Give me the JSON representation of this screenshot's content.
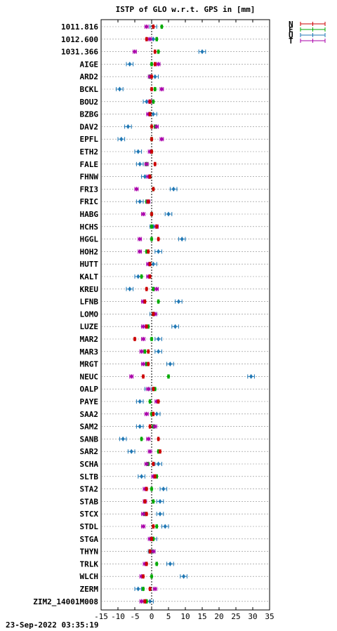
{
  "chart_data": {
    "type": "scatter",
    "title": "ISTP of GLO w.r.t. GPS in [mm]",
    "xlim": [
      -15,
      35
    ],
    "xticks": [
      -15,
      -10,
      -5,
      0,
      5,
      10,
      15,
      20,
      25,
      30,
      35
    ],
    "reference_line_x": 0,
    "grid": "horizontal dotted",
    "legend_position": "top-right",
    "series": [
      {
        "name": "N",
        "color": "#cc0000"
      },
      {
        "name": "E",
        "color": "#00aa00"
      },
      {
        "name": "U",
        "color": "#1f77b4"
      },
      {
        "name": "T",
        "color": "#aa00aa"
      }
    ],
    "stations": [
      {
        "label": "1011.816",
        "N": 0.5,
        "E": 3.0,
        "U": 0.5,
        "T": -1.5
      },
      {
        "label": "1012.600",
        "N": -1.5,
        "E": 1.5,
        "U": 0.5,
        "T": -0.5
      },
      {
        "label": "1031.366",
        "N": 1.0,
        "E": 2.0,
        "U": 15.0,
        "T": -5.0
      },
      {
        "label": "AIGE",
        "N": 1.0,
        "E": 0.0,
        "U": -6.5,
        "T": 2.0
      },
      {
        "label": "ARD2",
        "N": 0.0,
        "E": -0.5,
        "U": 1.0,
        "T": -0.5
      },
      {
        "label": "BCKL",
        "N": 0.0,
        "E": 1.0,
        "U": -9.5,
        "T": 3.0
      },
      {
        "label": "BOU2",
        "N": -0.5,
        "E": 0.5,
        "U": -1.5,
        "T": -0.5
      },
      {
        "label": "BZBG",
        "N": -0.5,
        "E": -0.5,
        "U": 0.5,
        "T": -1.0
      },
      {
        "label": "DAV2",
        "N": 0.0,
        "E": 1.0,
        "U": -7.0,
        "T": 1.5
      },
      {
        "label": "EPFL",
        "N": 0.0,
        "E": 0.0,
        "U": -9.0,
        "T": 3.0
      },
      {
        "label": "ETH2",
        "N": 0.0,
        "E": 0.0,
        "U": -4.0,
        "T": -0.5
      },
      {
        "label": "FALE",
        "N": 1.0,
        "E": -1.5,
        "U": -3.5,
        "T": -1.5
      },
      {
        "label": "FHNW",
        "N": -0.5,
        "E": -0.5,
        "U": -2.0,
        "T": -1.0
      },
      {
        "label": "FRI3",
        "N": 0.5,
        "E": 0.5,
        "U": 6.5,
        "T": -4.5
      },
      {
        "label": "FRIC",
        "N": -1.0,
        "E": -1.5,
        "U": -3.5,
        "T": -1.0
      },
      {
        "label": "HABG",
        "N": 0.0,
        "E": 0.0,
        "U": 5.0,
        "T": -2.5
      },
      {
        "label": "HCHS",
        "N": 1.5,
        "E": 0.0,
        "U": 0.5,
        "T": 1.5
      },
      {
        "label": "HGGL",
        "N": 2.0,
        "E": 0.0,
        "U": 9.0,
        "T": -3.5
      },
      {
        "label": "HOH2",
        "N": -1.0,
        "E": -1.5,
        "U": 2.0,
        "T": -3.5
      },
      {
        "label": "HUTT",
        "N": -0.5,
        "E": -0.5,
        "U": 0.5,
        "T": -1.0
      },
      {
        "label": "KALT",
        "N": -0.5,
        "E": -3.0,
        "U": -4.0,
        "T": -1.0
      },
      {
        "label": "KREU",
        "N": -1.5,
        "E": 0.5,
        "U": -6.5,
        "T": 1.5
      },
      {
        "label": "LFNB",
        "N": -2.0,
        "E": 2.0,
        "U": 8.0,
        "T": -2.5
      },
      {
        "label": "LOMO",
        "N": 0.5,
        "E": 0.5,
        "U": 0.5,
        "T": 1.0
      },
      {
        "label": "LUZE",
        "N": -1.5,
        "E": -1.0,
        "U": 7.0,
        "T": -2.5
      },
      {
        "label": "MAR2",
        "N": -5.0,
        "E": 0.0,
        "U": 2.0,
        "T": -2.5
      },
      {
        "label": "MAR3",
        "N": -1.0,
        "E": -2.0,
        "U": 2.0,
        "T": -3.0
      },
      {
        "label": "MRGT",
        "N": -1.0,
        "E": -1.5,
        "U": 5.5,
        "T": -2.5
      },
      {
        "label": "NEUC",
        "N": -2.5,
        "E": 5.0,
        "U": 29.5,
        "T": -6.0
      },
      {
        "label": "OALP",
        "N": 0.5,
        "E": 1.0,
        "U": -1.0,
        "T": -1.0
      },
      {
        "label": "PAYE",
        "N": 2.0,
        "E": -0.5,
        "U": -3.5,
        "T": 1.5
      },
      {
        "label": "SAA2",
        "N": 0.5,
        "E": 0.0,
        "U": 1.5,
        "T": -1.5
      },
      {
        "label": "SAM2",
        "N": -0.5,
        "E": 0.5,
        "U": -3.5,
        "T": 1.0
      },
      {
        "label": "SANB",
        "N": 2.0,
        "E": -3.0,
        "U": -8.5,
        "T": -1.0
      },
      {
        "label": "SAR2",
        "N": 2.5,
        "E": 2.0,
        "U": -6.0,
        "T": -0.5
      },
      {
        "label": "SCHA",
        "N": 0.5,
        "E": -1.0,
        "U": 2.0,
        "T": -1.5
      },
      {
        "label": "SLTB",
        "N": 1.0,
        "E": 1.5,
        "U": -3.0,
        "T": 0.5
      },
      {
        "label": "STA2",
        "N": -1.5,
        "E": 0.0,
        "U": 3.5,
        "T": -2.0
      },
      {
        "label": "STAB",
        "N": -2.0,
        "E": 0.5,
        "U": 2.5,
        "T": -2.0
      },
      {
        "label": "STCX",
        "N": -1.5,
        "E": -2.0,
        "U": 2.5,
        "T": -2.5
      },
      {
        "label": "STDL",
        "N": 0.5,
        "E": 1.5,
        "U": 4.0,
        "T": -2.5
      },
      {
        "label": "STGA",
        "N": 0.0,
        "E": 0.5,
        "U": 0.5,
        "T": -0.5
      },
      {
        "label": "THYN",
        "N": -0.5,
        "E": 0.0,
        "U": 0.0,
        "T": 0.5
      },
      {
        "label": "TRLK",
        "N": -1.5,
        "E": 1.5,
        "U": 5.5,
        "T": -2.0
      },
      {
        "label": "WLCH",
        "N": -2.5,
        "E": 0.0,
        "U": 9.5,
        "T": -3.0
      },
      {
        "label": "ZERM",
        "N": -0.5,
        "E": -2.5,
        "U": -4.0,
        "T": 1.0
      },
      {
        "label": "ZIM2_14001M008",
        "N": -2.0,
        "E": -1.5,
        "U": -0.5,
        "T": -3.0
      }
    ]
  },
  "footer": {
    "timestamp": "23-Sep-2022 03:35:19"
  }
}
